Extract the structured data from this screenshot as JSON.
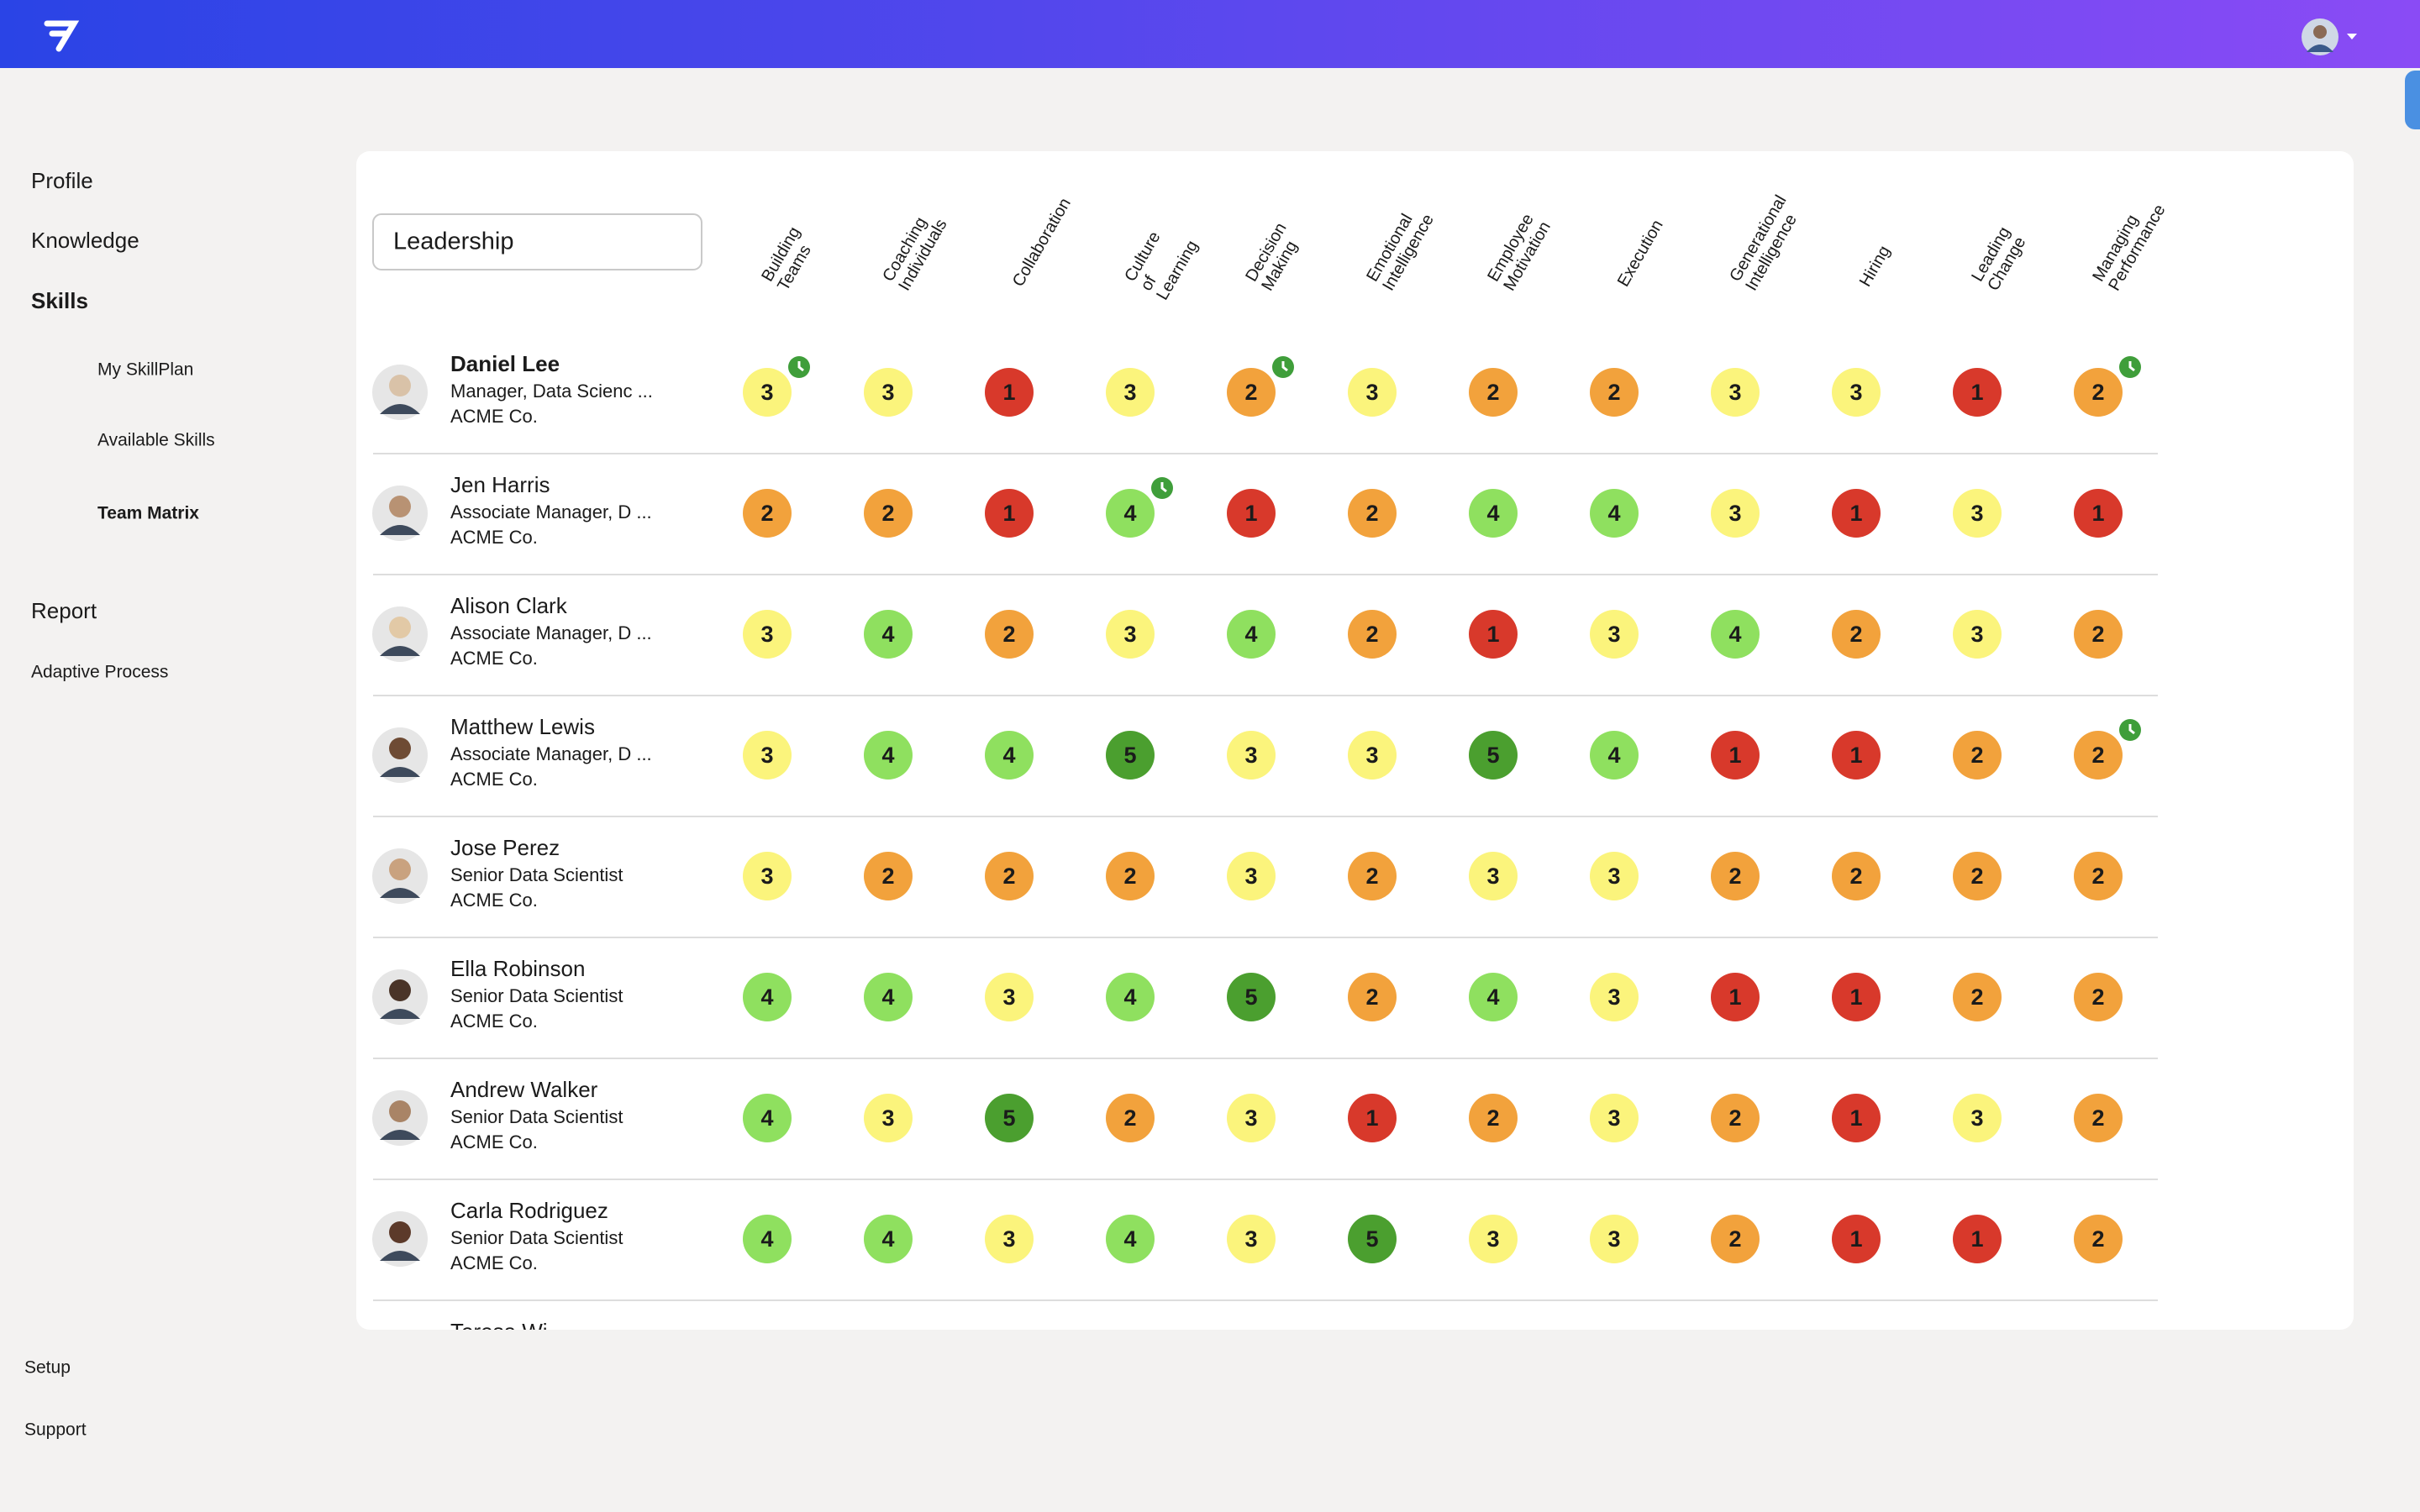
{
  "nav": {
    "items": [
      "Profile",
      "Knowledge",
      "Skills"
    ],
    "sub_items": [
      "My SkillPlan",
      "Available Skills",
      "Team Matrix"
    ],
    "more_items": [
      "Report",
      "Adaptive Process"
    ],
    "footer_items": [
      "Setup",
      "Support"
    ]
  },
  "matrix": {
    "search": "Leadership",
    "skills": [
      "Building Teams",
      "Coaching Individuals",
      "Collaboration",
      "Culture of Learning",
      "Decision Making",
      "Emotional Intelligence",
      "Employee Motivation",
      "Execution",
      "Generational Intelligence",
      "Hiring",
      "Leading Change",
      "Managing Performance"
    ],
    "score_colors": {
      "1": "#d8392b",
      "2": "#f2a23c",
      "3": "#fbf47c",
      "4": "#8fe05f",
      "5": "#4b9f2f"
    },
    "rows": [
      {
        "name": "Daniel Lee",
        "title": "Manager, Data Scienc ...",
        "company": "ACME Co.",
        "scores": [
          3,
          3,
          1,
          3,
          2,
          3,
          2,
          2,
          3,
          3,
          1,
          2
        ]
      },
      {
        "name": "Jen Harris",
        "title": "Associate Manager, D ...",
        "company": "ACME Co.",
        "scores": [
          2,
          2,
          1,
          4,
          1,
          2,
          4,
          4,
          3,
          1,
          3,
          1
        ]
      },
      {
        "name": "Alison Clark",
        "title": "Associate Manager, D ...",
        "company": "ACME Co.",
        "scores": [
          3,
          4,
          2,
          3,
          4,
          2,
          1,
          3,
          4,
          2,
          3,
          2
        ]
      },
      {
        "name": "Matthew Lewis",
        "title": "Associate Manager, D ...",
        "company": "ACME Co.",
        "scores": [
          3,
          4,
          4,
          5,
          3,
          3,
          5,
          4,
          1,
          1,
          2,
          2
        ]
      },
      {
        "name": "Jose Perez",
        "title": "Senior Data Scientist",
        "company": "ACME Co.",
        "scores": [
          3,
          2,
          2,
          2,
          3,
          2,
          3,
          3,
          2,
          2,
          2,
          2
        ]
      },
      {
        "name": "Ella Robinson",
        "title": "Senior Data Scientist",
        "company": "ACME Co.",
        "scores": [
          4,
          4,
          3,
          4,
          5,
          2,
          4,
          3,
          1,
          1,
          2,
          2
        ]
      },
      {
        "name": "Andrew Walker",
        "title": "Senior Data Scientist",
        "company": "ACME Co.",
        "scores": [
          4,
          3,
          5,
          2,
          3,
          1,
          2,
          3,
          2,
          1,
          3,
          2
        ]
      },
      {
        "name": "Carla Rodriguez",
        "title": "Senior Data Scientist",
        "company": "ACME Co.",
        "scores": [
          4,
          4,
          3,
          4,
          3,
          5,
          3,
          3,
          2,
          1,
          1,
          2
        ]
      },
      {
        "name": "Teresa Wi"
      }
    ]
  }
}
